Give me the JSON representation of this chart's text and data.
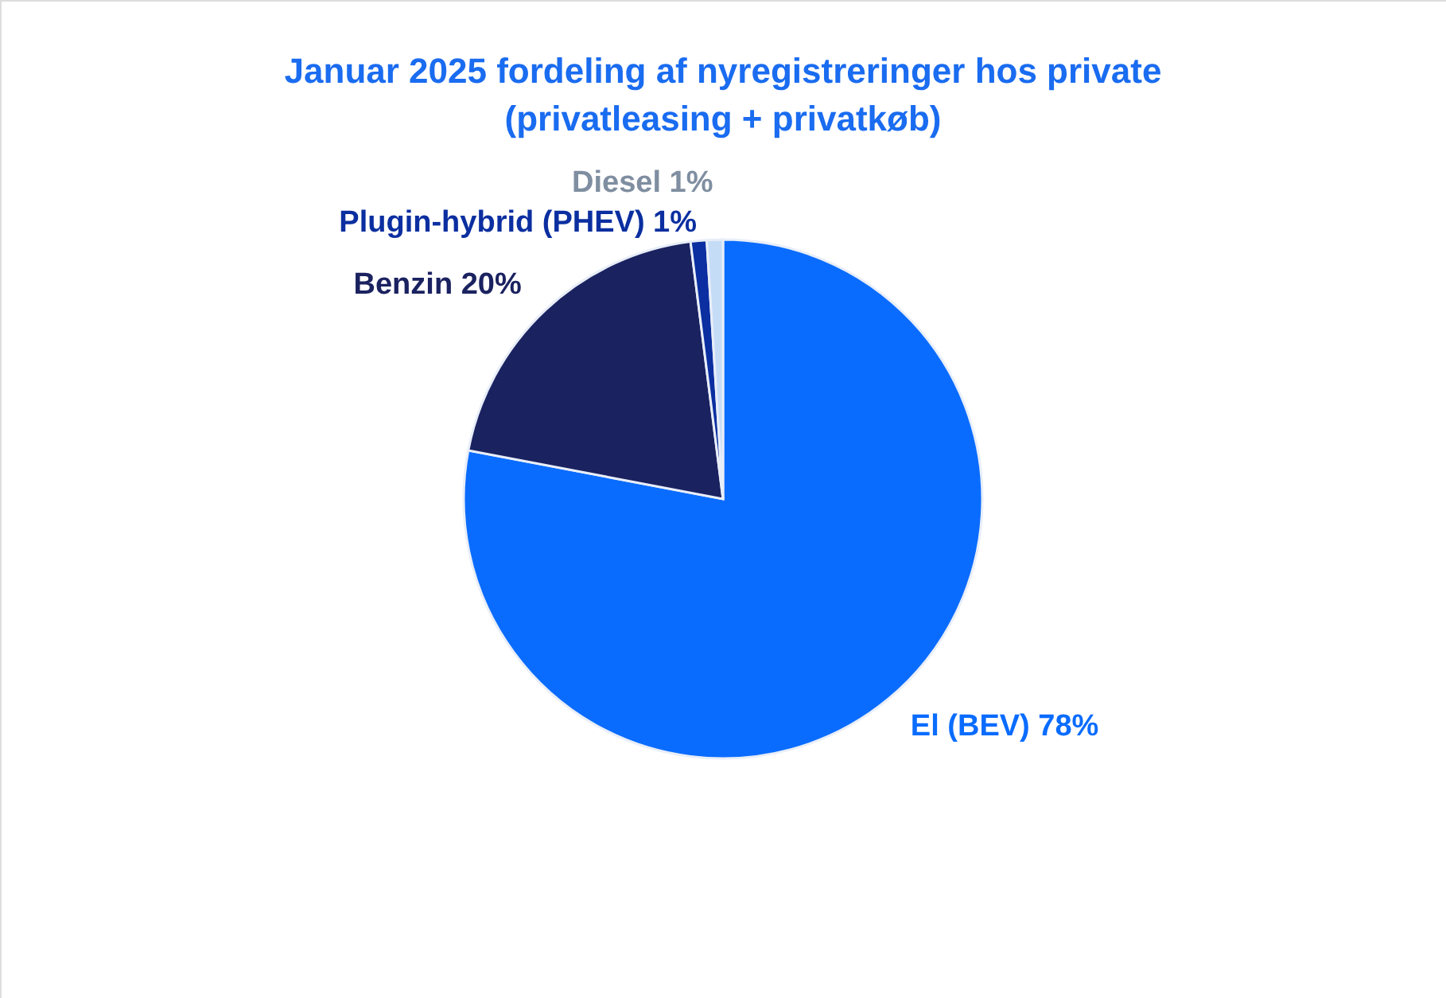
{
  "chart_data": {
    "type": "pie",
    "title": "Januar 2025 fordeling af nyregistreringer hos private\n(privatleasing + privatkøb)",
    "categories": [
      "El (BEV)",
      "Benzin",
      "Plugin-hybrid (PHEV)",
      "Diesel"
    ],
    "values": [
      78,
      20,
      1,
      1
    ],
    "value_labels": [
      "78%",
      "20%",
      "1%",
      "1%"
    ],
    "colors": [
      "#0a6cff",
      "#1b2260",
      "#0b2fa0",
      "#c5dcf7"
    ]
  }
}
